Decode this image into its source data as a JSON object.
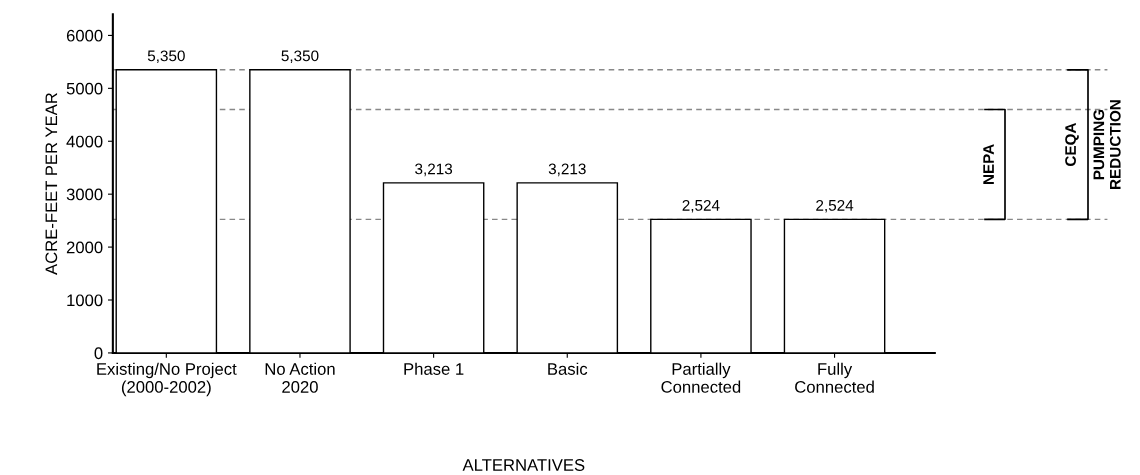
{
  "chart_data": {
    "type": "bar",
    "xlabel": "ALTERNATIVES",
    "ylabel": "ACRE-FEET PER YEAR",
    "categories": [
      "Existing/No Project\n(2000-2002)",
      "No Action\n2020",
      "Phase 1",
      "Basic",
      "Partially\nConnected",
      "Fully\nConnected"
    ],
    "values": [
      5350,
      5350,
      3213,
      3213,
      2524,
      2524
    ],
    "value_labels": [
      "5,350",
      "5,350",
      "3,213",
      "3,213",
      "2,524",
      "2,524"
    ],
    "color": "#ffffff",
    "ylim": [
      0,
      6400
    ],
    "yticks": [
      0,
      1000,
      2000,
      3000,
      4000,
      5000,
      6000
    ],
    "grid": false,
    "legend": false,
    "ref_lines": [
      {
        "axis": "y",
        "value": 5350,
        "line_style": "dashed",
        "color": "#888888"
      },
      {
        "axis": "y",
        "value": 4600,
        "line_style": "dashed",
        "color": "#888888"
      },
      {
        "axis": "y",
        "value": 2524,
        "line_style": "dashed",
        "color": "#888888"
      }
    ],
    "annotations": [
      "NEPA",
      "CEQA",
      "PUMPING\nREDUCTION"
    ]
  }
}
